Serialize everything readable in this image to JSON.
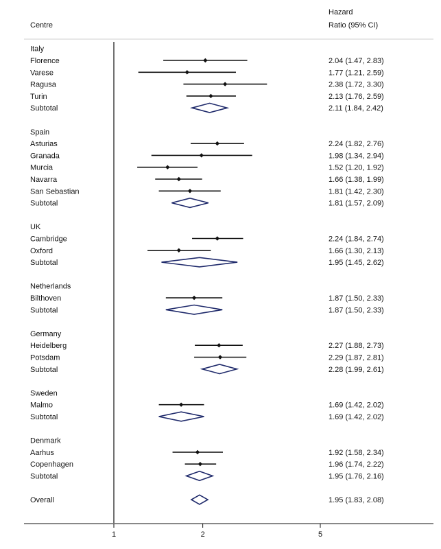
{
  "chart_data": {
    "type": "forest",
    "header": {
      "label_column": "Centre",
      "estimate_column_line1": "Hazard",
      "estimate_column_line2": "Ratio (95% CI)"
    },
    "x_scale": "log",
    "x_ticks": [
      1,
      2,
      5
    ],
    "x_tick_labels": [
      "1",
      "2",
      "5"
    ],
    "null_line": 1,
    "rows": [
      {
        "kind": "group",
        "label": "Italy"
      },
      {
        "kind": "study",
        "label": "Florence",
        "hr": 2.04,
        "lo": 1.47,
        "hi": 2.83,
        "text": "2.04 (1.47, 2.83)"
      },
      {
        "kind": "study",
        "label": "Varese",
        "hr": 1.77,
        "lo": 1.21,
        "hi": 2.59,
        "text": "1.77 (1.21, 2.59)"
      },
      {
        "kind": "study",
        "label": "Ragusa",
        "hr": 2.38,
        "lo": 1.72,
        "hi": 3.3,
        "text": "2.38 (1.72, 3.30)"
      },
      {
        "kind": "study",
        "label": "Turin",
        "hr": 2.13,
        "lo": 1.76,
        "hi": 2.59,
        "text": "2.13 (1.76, 2.59)"
      },
      {
        "kind": "subtotal",
        "label": "Subtotal",
        "hr": 2.11,
        "lo": 1.84,
        "hi": 2.42,
        "text": "2.11 (1.84, 2.42)"
      },
      {
        "kind": "gap"
      },
      {
        "kind": "group",
        "label": "Spain"
      },
      {
        "kind": "study",
        "label": "Asturias",
        "hr": 2.24,
        "lo": 1.82,
        "hi": 2.76,
        "text": "2.24 (1.82, 2.76)"
      },
      {
        "kind": "study",
        "label": "Granada",
        "hr": 1.98,
        "lo": 1.34,
        "hi": 2.94,
        "text": "1.98 (1.34, 2.94)"
      },
      {
        "kind": "study",
        "label": "Murcia",
        "hr": 1.52,
        "lo": 1.2,
        "hi": 1.92,
        "text": "1.52 (1.20, 1.92)"
      },
      {
        "kind": "study",
        "label": "Navarra",
        "hr": 1.66,
        "lo": 1.38,
        "hi": 1.99,
        "text": "1.66 (1.38, 1.99)"
      },
      {
        "kind": "study",
        "label": "San Sebastian",
        "hr": 1.81,
        "lo": 1.42,
        "hi": 2.3,
        "text": "1.81 (1.42, 2.30)"
      },
      {
        "kind": "subtotal",
        "label": "Subtotal",
        "hr": 1.81,
        "lo": 1.57,
        "hi": 2.09,
        "text": "1.81 (1.57, 2.09)"
      },
      {
        "kind": "gap"
      },
      {
        "kind": "group",
        "label": "UK"
      },
      {
        "kind": "study",
        "label": "Cambridge",
        "hr": 2.24,
        "lo": 1.84,
        "hi": 2.74,
        "text": "2.24 (1.84, 2.74)"
      },
      {
        "kind": "study",
        "label": "Oxford",
        "hr": 1.66,
        "lo": 1.3,
        "hi": 2.13,
        "text": "1.66 (1.30, 2.13)"
      },
      {
        "kind": "subtotal",
        "label": "Subtotal",
        "hr": 1.95,
        "lo": 1.45,
        "hi": 2.62,
        "text": "1.95 (1.45, 2.62)"
      },
      {
        "kind": "gap"
      },
      {
        "kind": "group",
        "label": "Netherlands"
      },
      {
        "kind": "study",
        "label": "Bilthoven",
        "hr": 1.87,
        "lo": 1.5,
        "hi": 2.33,
        "text": "1.87 (1.50, 2.33)"
      },
      {
        "kind": "subtotal",
        "label": "Subtotal",
        "hr": 1.87,
        "lo": 1.5,
        "hi": 2.33,
        "text": "1.87 (1.50, 2.33)"
      },
      {
        "kind": "gap"
      },
      {
        "kind": "group",
        "label": "Germany"
      },
      {
        "kind": "study",
        "label": "Heidelberg",
        "hr": 2.27,
        "lo": 1.88,
        "hi": 2.73,
        "text": "2.27 (1.88, 2.73)"
      },
      {
        "kind": "study",
        "label": "Potsdam",
        "hr": 2.29,
        "lo": 1.87,
        "hi": 2.81,
        "text": "2.29 (1.87, 2.81)"
      },
      {
        "kind": "subtotal",
        "label": "Subtotal",
        "hr": 2.28,
        "lo": 1.99,
        "hi": 2.61,
        "text": "2.28 (1.99, 2.61)"
      },
      {
        "kind": "gap"
      },
      {
        "kind": "group",
        "label": "Sweden"
      },
      {
        "kind": "study",
        "label": "Malmo",
        "hr": 1.69,
        "lo": 1.42,
        "hi": 2.02,
        "text": "1.69 (1.42, 2.02)"
      },
      {
        "kind": "subtotal",
        "label": "Subtotal",
        "hr": 1.69,
        "lo": 1.42,
        "hi": 2.02,
        "text": "1.69 (1.42, 2.02)"
      },
      {
        "kind": "gap"
      },
      {
        "kind": "group",
        "label": "Denmark"
      },
      {
        "kind": "study",
        "label": "Aarhus",
        "hr": 1.92,
        "lo": 1.58,
        "hi": 2.34,
        "text": "1.92 (1.58, 2.34)"
      },
      {
        "kind": "study",
        "label": "Copenhagen",
        "hr": 1.96,
        "lo": 1.74,
        "hi": 2.22,
        "text": "1.96 (1.74, 2.22)"
      },
      {
        "kind": "subtotal",
        "label": "Subtotal",
        "hr": 1.95,
        "lo": 1.76,
        "hi": 2.16,
        "text": "1.95 (1.76, 2.16)"
      },
      {
        "kind": "gap"
      },
      {
        "kind": "overall",
        "label": "Overall",
        "hr": 1.95,
        "lo": 1.83,
        "hi": 2.08,
        "text": "1.95 (1.83, 2.08)"
      }
    ],
    "colors": {
      "text": "#111111",
      "ci_line": "#111111",
      "point": "#111111",
      "diamond": "#1f2a6b",
      "rule": "#cfcfcf",
      "axis": "#111111"
    }
  }
}
